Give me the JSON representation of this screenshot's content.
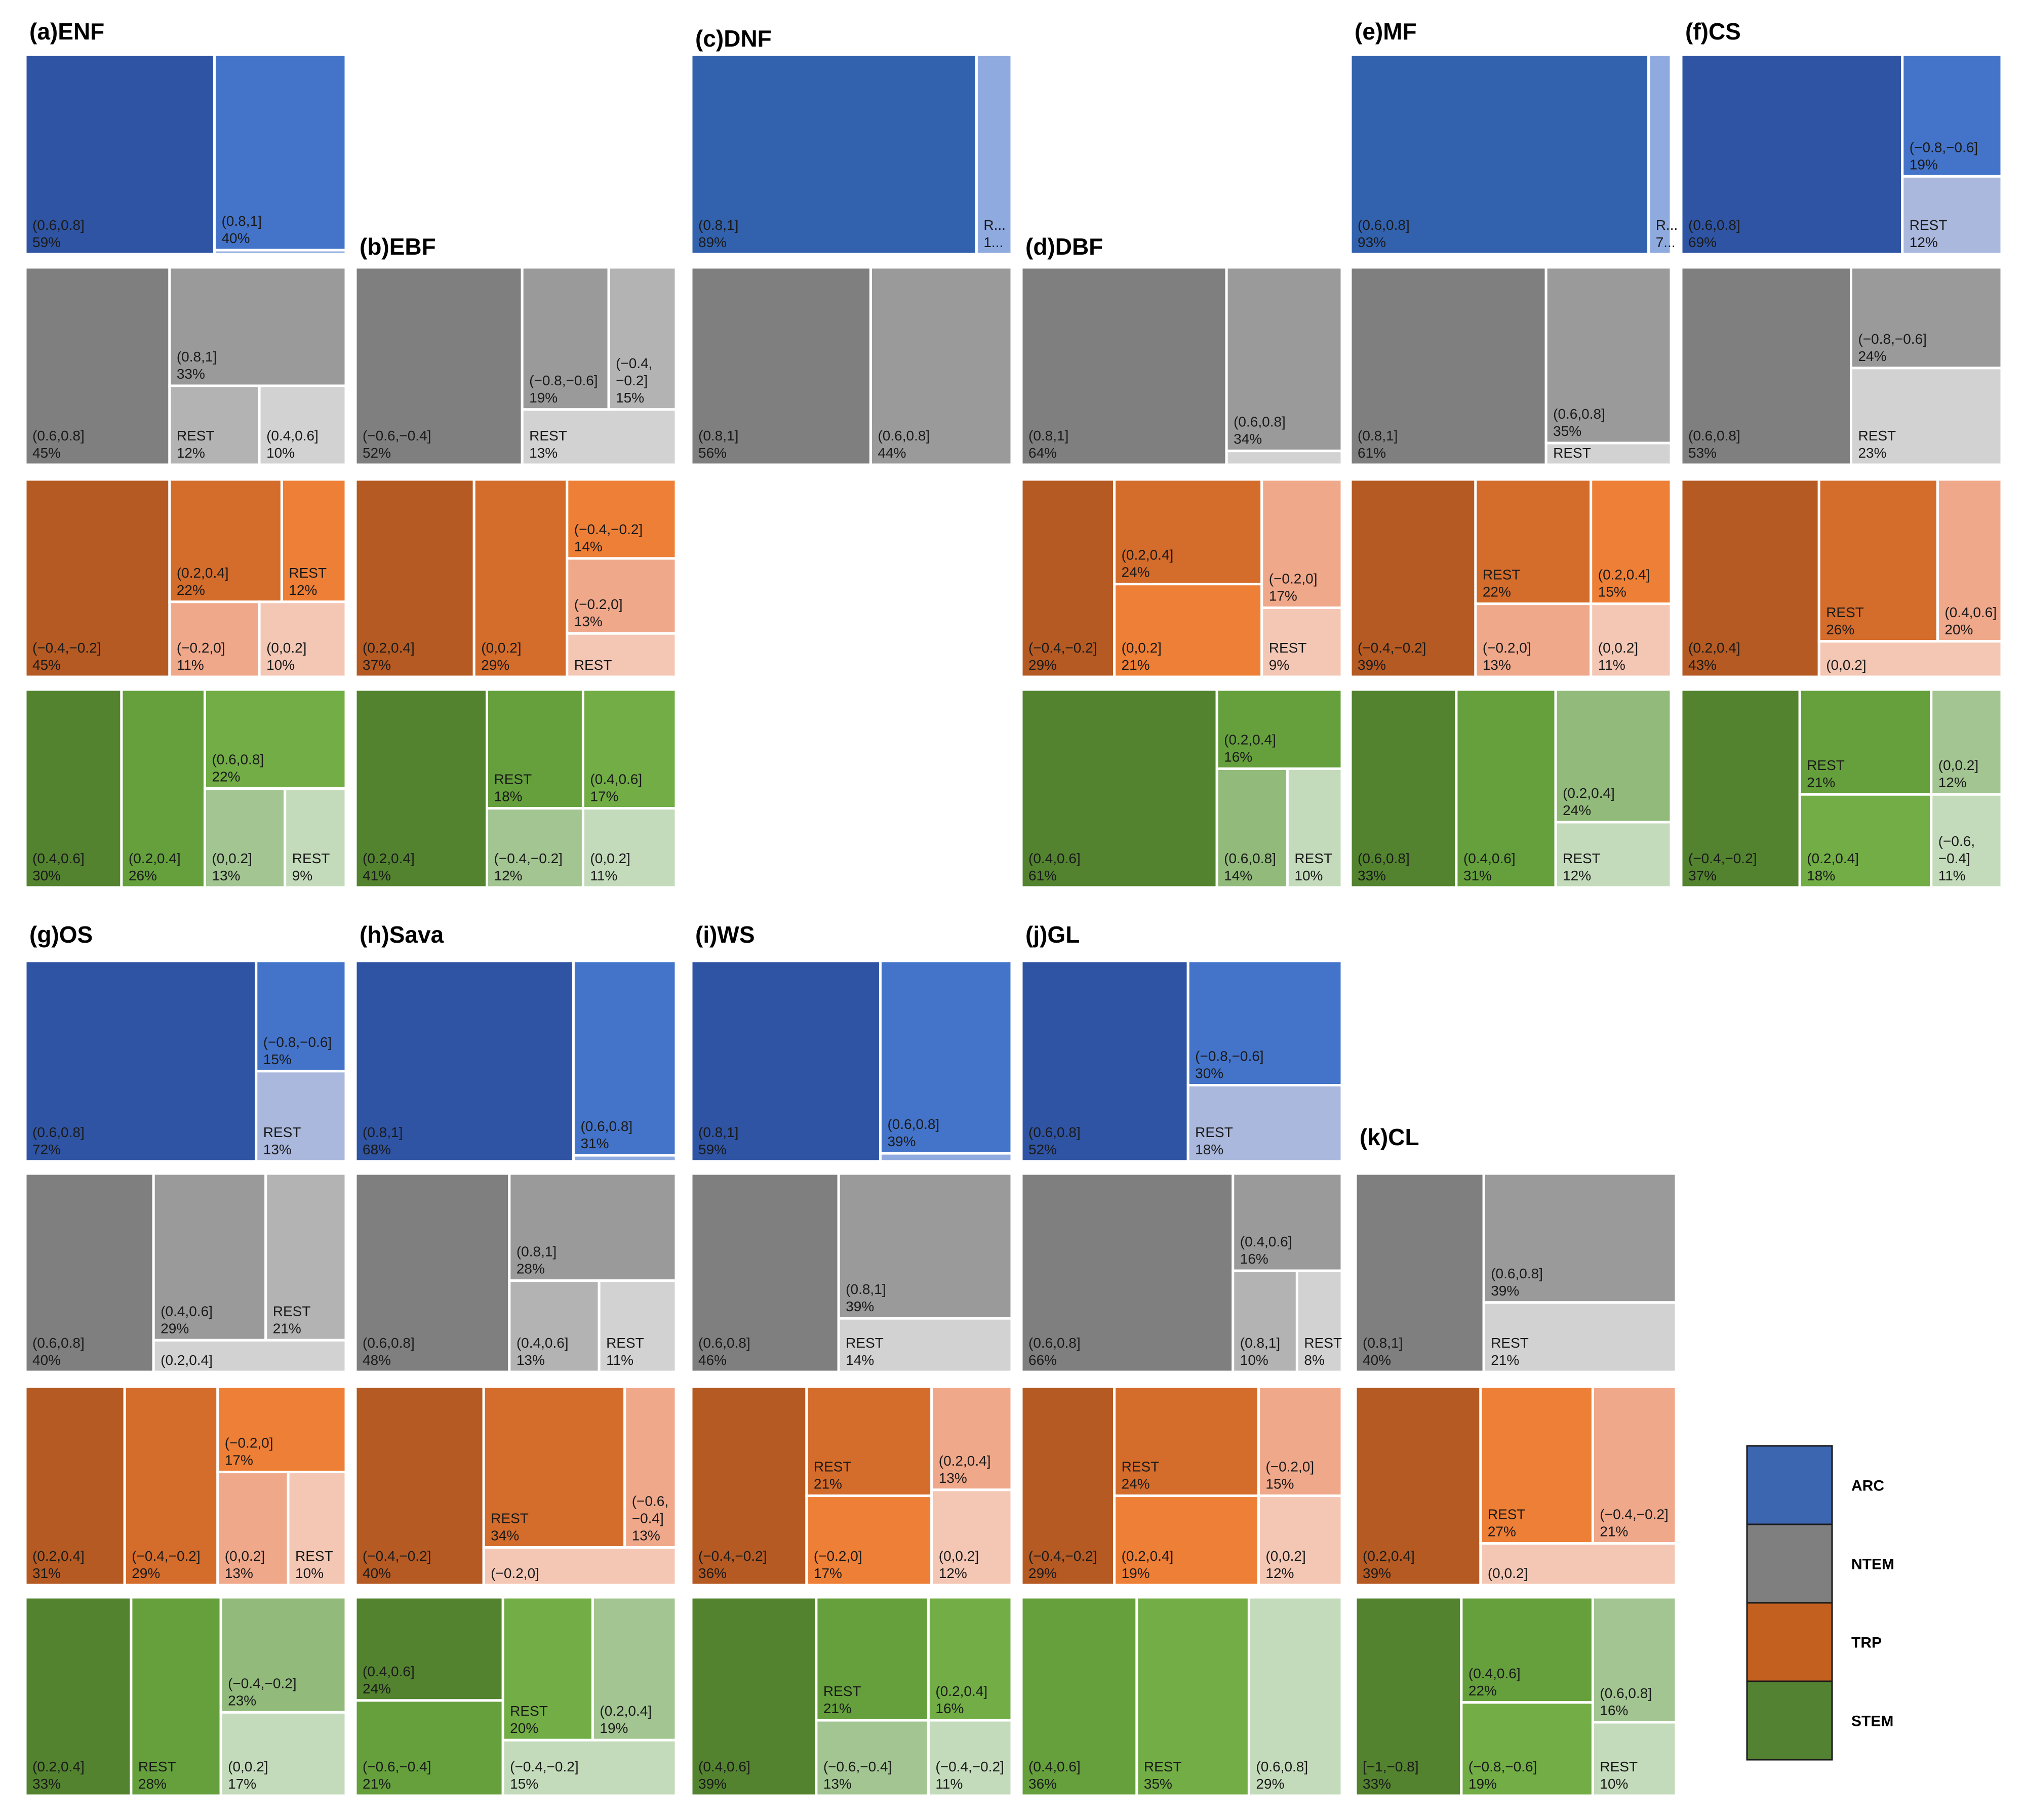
{
  "figure_title": "",
  "colors": {
    "ARC": [
      "#2f54a4",
      "#4474c9",
      "#8eaadf",
      "#aab8dd"
    ],
    "NTEM": [
      "#7f7f7f",
      "#9a9a9a",
      "#b3b3b3",
      "#d2d2d2"
    ],
    "TRP": [
      "#b55a22",
      "#d46c2c",
      "#ee7f36",
      "#f0a88a",
      "#f4c7b5"
    ],
    "STEM": [
      "#53832f",
      "#65a03c",
      "#72ad46",
      "#92bb7b",
      "#a3c592",
      "#c3dbba"
    ]
  },
  "legend": [
    {
      "name": "ARC",
      "color": "#3d66b1"
    },
    {
      "name": "NTEM",
      "color": "#7f7f7f"
    },
    {
      "name": "TRP",
      "color": "#c4601f"
    },
    {
      "name": "STEM",
      "color": "#548233"
    }
  ],
  "chart_data": {
    "type": "treemap",
    "panels": [
      {
        "title": "(a)ENF",
        "groups": [
          {
            "name": "ARC",
            "cells": [
              {
                "label": "(0.6,0.8]",
                "pct": "59%"
              },
              {
                "label": "(0.8,1]",
                "pct": "40%"
              },
              {
                "label": "",
                "pct": ""
              }
            ]
          },
          {
            "name": "NTEM",
            "cells": [
              {
                "label": "(0.6,0.8]",
                "pct": "45%"
              },
              {
                "label": "(0.8,1]",
                "pct": "33%"
              },
              {
                "label": "REST",
                "pct": "12%"
              },
              {
                "label": "(0.4,0.6]",
                "pct": "10%"
              }
            ]
          },
          {
            "name": "TRP",
            "cells": [
              {
                "label": "(−0.4,−0.2]",
                "pct": "45%"
              },
              {
                "label": "(0.2,0.4]",
                "pct": "22%"
              },
              {
                "label": "REST",
                "pct": "12%"
              },
              {
                "label": "(−0.2,0]",
                "pct": "11%"
              },
              {
                "label": "(0,0.2]",
                "pct": "10%"
              }
            ]
          },
          {
            "name": "STEM",
            "cells": [
              {
                "label": "(0.4,0.6]",
                "pct": "30%"
              },
              {
                "label": "(0.2,0.4]",
                "pct": "26%"
              },
              {
                "label": "(0.6,0.8]",
                "pct": "22%"
              },
              {
                "label": "(0,0.2]",
                "pct": "13%"
              },
              {
                "label": "REST",
                "pct": "9%"
              }
            ]
          }
        ]
      },
      {
        "title": "(b)EBF",
        "groups": [
          {
            "name": "NTEM",
            "cells": [
              {
                "label": "(−0.6,−0.4]",
                "pct": "52%"
              },
              {
                "label": "(−0.8,−0.6]",
                "pct": "19%"
              },
              {
                "label": "(−0.4,\n−0.2]",
                "pct": "15%"
              },
              {
                "label": "REST",
                "pct": "13%"
              }
            ]
          },
          {
            "name": "TRP",
            "cells": [
              {
                "label": "(0.2,0.4]",
                "pct": "37%"
              },
              {
                "label": "(0,0.2]",
                "pct": "29%"
              },
              {
                "label": "(−0.4,−0.2]",
                "pct": "14%"
              },
              {
                "label": "(−0.2,0]",
                "pct": "13%"
              },
              {
                "label": "REST",
                "pct": ""
              }
            ]
          },
          {
            "name": "STEM",
            "cells": [
              {
                "label": "(0.2,0.4]",
                "pct": "41%"
              },
              {
                "label": "REST",
                "pct": "18%"
              },
              {
                "label": "(0.4,0.6]",
                "pct": "17%"
              },
              {
                "label": "(−0.4,−0.2]",
                "pct": "12%"
              },
              {
                "label": "(0,0.2]",
                "pct": "11%"
              }
            ]
          }
        ]
      },
      {
        "title": "(c)DNF",
        "groups": [
          {
            "name": "ARC",
            "cells": [
              {
                "label": "(0.8,1]",
                "pct": "89%"
              },
              {
                "label": "R...",
                "pct": "1..."
              }
            ]
          },
          {
            "name": "NTEM",
            "cells": [
              {
                "label": "(0.8,1]",
                "pct": "56%"
              },
              {
                "label": "(0.6,0.8]",
                "pct": "44%"
              }
            ]
          }
        ]
      },
      {
        "title": "(d)DBF",
        "groups": [
          {
            "name": "NTEM",
            "cells": [
              {
                "label": "(0.8,1]",
                "pct": "64%"
              },
              {
                "label": "(0.6,0.8]",
                "pct": "34%"
              },
              {
                "label": "",
                "pct": ""
              }
            ]
          },
          {
            "name": "TRP",
            "cells": [
              {
                "label": "(−0.4,−0.2]",
                "pct": "29%"
              },
              {
                "label": "(0.2,0.4]",
                "pct": "24%"
              },
              {
                "label": "(0,0.2]",
                "pct": "21%"
              },
              {
                "label": "(−0.2,0]",
                "pct": "17%"
              },
              {
                "label": "REST",
                "pct": "9%"
              }
            ]
          },
          {
            "name": "STEM",
            "cells": [
              {
                "label": "(0.4,0.6]",
                "pct": "61%"
              },
              {
                "label": "(0.2,0.4]",
                "pct": "16%"
              },
              {
                "label": "(0.6,0.8]",
                "pct": "14%"
              },
              {
                "label": "REST",
                "pct": "10%"
              }
            ]
          }
        ]
      },
      {
        "title": "(e)MF",
        "groups": [
          {
            "name": "ARC",
            "cells": [
              {
                "label": "(0.6,0.8]",
                "pct": "93%"
              },
              {
                "label": "R...",
                "pct": "7..."
              }
            ]
          },
          {
            "name": "NTEM",
            "cells": [
              {
                "label": "(0.8,1]",
                "pct": "61%"
              },
              {
                "label": "(0.6,0.8]",
                "pct": "35%"
              },
              {
                "label": "REST",
                "pct": ""
              }
            ]
          },
          {
            "name": "TRP",
            "cells": [
              {
                "label": "(−0.4,−0.2]",
                "pct": "39%"
              },
              {
                "label": "REST",
                "pct": "22%"
              },
              {
                "label": "(0.2,0.4]",
                "pct": "15%"
              },
              {
                "label": "(−0.2,0]",
                "pct": "13%"
              },
              {
                "label": "(0,0.2]",
                "pct": "11%"
              }
            ]
          },
          {
            "name": "STEM",
            "cells": [
              {
                "label": "(0.6,0.8]",
                "pct": "33%"
              },
              {
                "label": "(0.4,0.6]",
                "pct": "31%"
              },
              {
                "label": "(0.2,0.4]",
                "pct": "24%"
              },
              {
                "label": "REST",
                "pct": "12%"
              }
            ]
          }
        ]
      },
      {
        "title": "(f)CS",
        "groups": [
          {
            "name": "ARC",
            "cells": [
              {
                "label": "(0.6,0.8]",
                "pct": "69%"
              },
              {
                "label": "(−0.8,−0.6]",
                "pct": "19%"
              },
              {
                "label": "REST",
                "pct": "12%"
              }
            ]
          },
          {
            "name": "NTEM",
            "cells": [
              {
                "label": "(0.6,0.8]",
                "pct": "53%"
              },
              {
                "label": "(−0.8,−0.6]",
                "pct": "24%"
              },
              {
                "label": "REST",
                "pct": "23%"
              }
            ]
          },
          {
            "name": "TRP",
            "cells": [
              {
                "label": "(0.2,0.4]",
                "pct": "43%"
              },
              {
                "label": "REST",
                "pct": "26%"
              },
              {
                "label": "(0.4,0.6]",
                "pct": "20%"
              },
              {
                "label": "(0,0.2]",
                "pct": ""
              }
            ]
          },
          {
            "name": "STEM",
            "cells": [
              {
                "label": "(−0.4,−0.2]",
                "pct": "37%"
              },
              {
                "label": "REST",
                "pct": "21%"
              },
              {
                "label": "(0.2,0.4]",
                "pct": "18%"
              },
              {
                "label": "(0,0.2]",
                "pct": "12%"
              },
              {
                "label": "(−0.6,\n−0.4]",
                "pct": "11%"
              }
            ]
          }
        ]
      },
      {
        "title": "(g)OS",
        "groups": [
          {
            "name": "ARC",
            "cells": [
              {
                "label": "(0.6,0.8]",
                "pct": "72%"
              },
              {
                "label": "(−0.8,−0.6]",
                "pct": "15%"
              },
              {
                "label": "REST",
                "pct": "13%"
              }
            ]
          },
          {
            "name": "NTEM",
            "cells": [
              {
                "label": "(0.6,0.8]",
                "pct": "40%"
              },
              {
                "label": "(0.4,0.6]",
                "pct": "29%"
              },
              {
                "label": "REST",
                "pct": "21%"
              },
              {
                "label": "(0.2,0.4]",
                "pct": ""
              }
            ]
          },
          {
            "name": "TRP",
            "cells": [
              {
                "label": "(0.2,0.4]",
                "pct": "31%"
              },
              {
                "label": "(−0.4,−0.2]",
                "pct": "29%"
              },
              {
                "label": "(−0.2,0]",
                "pct": "17%"
              },
              {
                "label": "(0,0.2]",
                "pct": "13%"
              },
              {
                "label": "REST",
                "pct": "10%"
              }
            ]
          },
          {
            "name": "STEM",
            "cells": [
              {
                "label": "(0.2,0.4]",
                "pct": "33%"
              },
              {
                "label": "REST",
                "pct": "28%"
              },
              {
                "label": "(−0.4,−0.2]",
                "pct": "23%"
              },
              {
                "label": "(0,0.2]",
                "pct": "17%"
              }
            ]
          }
        ]
      },
      {
        "title": "(h)Sava",
        "groups": [
          {
            "name": "ARC",
            "cells": [
              {
                "label": "(0.8,1]",
                "pct": "68%"
              },
              {
                "label": "(0.6,0.8]",
                "pct": "31%"
              },
              {
                "label": "",
                "pct": ""
              }
            ]
          },
          {
            "name": "NTEM",
            "cells": [
              {
                "label": "(0.6,0.8]",
                "pct": "48%"
              },
              {
                "label": "(0.8,1]",
                "pct": "28%"
              },
              {
                "label": "(0.4,0.6]",
                "pct": "13%"
              },
              {
                "label": "REST",
                "pct": "11%"
              }
            ]
          },
          {
            "name": "TRP",
            "cells": [
              {
                "label": "(−0.4,−0.2]",
                "pct": "40%"
              },
              {
                "label": "REST",
                "pct": "34%"
              },
              {
                "label": "(−0.6,\n−0.4]",
                "pct": "13%"
              },
              {
                "label": "(−0.2,0]",
                "pct": ""
              }
            ]
          },
          {
            "name": "STEM",
            "cells": [
              {
                "label": "(0.4,0.6]",
                "pct": "24%"
              },
              {
                "label": "(−0.6,−0.4]",
                "pct": "21%"
              },
              {
                "label": "REST",
                "pct": "20%"
              },
              {
                "label": "(0.2,0.4]",
                "pct": "19%"
              },
              {
                "label": "(−0.4,−0.2]",
                "pct": "15%"
              }
            ]
          }
        ]
      },
      {
        "title": "(i)WS",
        "groups": [
          {
            "name": "ARC",
            "cells": [
              {
                "label": "(0.8,1]",
                "pct": "59%"
              },
              {
                "label": "(0.6,0.8]",
                "pct": "39%"
              },
              {
                "label": "",
                "pct": ""
              }
            ]
          },
          {
            "name": "NTEM",
            "cells": [
              {
                "label": "(0.6,0.8]",
                "pct": "46%"
              },
              {
                "label": "(0.8,1]",
                "pct": "39%"
              },
              {
                "label": "REST",
                "pct": "14%"
              }
            ]
          },
          {
            "name": "TRP",
            "cells": [
              {
                "label": "(−0.4,−0.2]",
                "pct": "36%"
              },
              {
                "label": "REST",
                "pct": "21%"
              },
              {
                "label": "(−0.2,0]",
                "pct": "17%"
              },
              {
                "label": "(0.2,0.4]",
                "pct": "13%"
              },
              {
                "label": "(0,0.2]",
                "pct": "12%"
              }
            ]
          },
          {
            "name": "STEM",
            "cells": [
              {
                "label": "(0.4,0.6]",
                "pct": "39%"
              },
              {
                "label": "REST",
                "pct": "21%"
              },
              {
                "label": "(0.2,0.4]",
                "pct": "16%"
              },
              {
                "label": "(−0.6,−0.4]",
                "pct": "13%"
              },
              {
                "label": "(−0.4,−0.2]",
                "pct": "11%"
              }
            ]
          }
        ]
      },
      {
        "title": "(j)GL",
        "groups": [
          {
            "name": "ARC",
            "cells": [
              {
                "label": "(0.6,0.8]",
                "pct": "52%"
              },
              {
                "label": "(−0.8,−0.6]",
                "pct": "30%"
              },
              {
                "label": "REST",
                "pct": "18%"
              }
            ]
          },
          {
            "name": "NTEM",
            "cells": [
              {
                "label": "(0.6,0.8]",
                "pct": "66%"
              },
              {
                "label": "(0.4,0.6]",
                "pct": "16%"
              },
              {
                "label": "(0.8,1]",
                "pct": "10%"
              },
              {
                "label": "REST",
                "pct": "8%"
              }
            ]
          },
          {
            "name": "TRP",
            "cells": [
              {
                "label": "(−0.4,−0.2]",
                "pct": "29%"
              },
              {
                "label": "REST",
                "pct": "24%"
              },
              {
                "label": "(0.2,0.4]",
                "pct": "19%"
              },
              {
                "label": "(−0.2,0]",
                "pct": "15%"
              },
              {
                "label": "(0,0.2]",
                "pct": "12%"
              }
            ]
          },
          {
            "name": "STEM",
            "cells": [
              {
                "label": "(0.4,0.6]",
                "pct": "36%"
              },
              {
                "label": "REST",
                "pct": "35%"
              },
              {
                "label": "(0.6,0.8]",
                "pct": "29%"
              }
            ]
          }
        ]
      },
      {
        "title": "(k)CL",
        "groups": [
          {
            "name": "NTEM",
            "cells": [
              {
                "label": "(0.8,1]",
                "pct": "40%"
              },
              {
                "label": "(0.6,0.8]",
                "pct": "39%"
              },
              {
                "label": "REST",
                "pct": "21%"
              }
            ]
          },
          {
            "name": "TRP",
            "cells": [
              {
                "label": "(0.2,0.4]",
                "pct": "39%"
              },
              {
                "label": "REST",
                "pct": "27%"
              },
              {
                "label": "(−0.4,−0.2]",
                "pct": "21%"
              },
              {
                "label": "(0,0.2]",
                "pct": ""
              }
            ]
          },
          {
            "name": "STEM",
            "cells": [
              {
                "label": "[−1,−0.8]",
                "pct": "33%"
              },
              {
                "label": "(0.4,0.6]",
                "pct": "22%"
              },
              {
                "label": "(−0.8,−0.6]",
                "pct": "19%"
              },
              {
                "label": "(0.6,0.8]",
                "pct": "16%"
              },
              {
                "label": "REST",
                "pct": "10%"
              }
            ]
          }
        ]
      }
    ]
  }
}
